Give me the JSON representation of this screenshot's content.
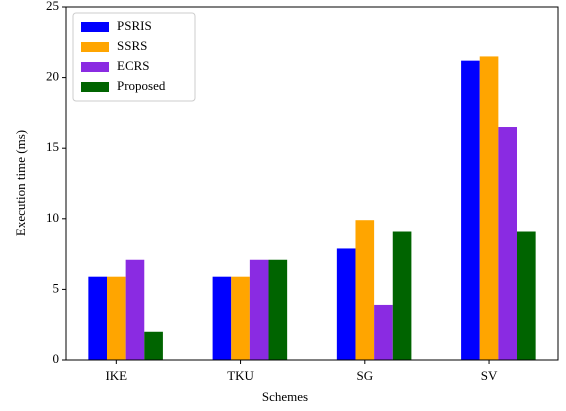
{
  "chart_data": {
    "type": "bar",
    "xlabel": "Schemes",
    "ylabel": "Execution time (ms)",
    "categories": [
      "IKE",
      "TKU",
      "SG",
      "SV"
    ],
    "series": [
      {
        "name": "PSRIS",
        "color": "#0000ff",
        "values": [
          5.9,
          5.9,
          7.9,
          21.2
        ]
      },
      {
        "name": "SSRS",
        "color": "#ffa500",
        "values": [
          5.9,
          5.9,
          9.9,
          21.5
        ]
      },
      {
        "name": "ECRS",
        "color": "#8a2be2",
        "values": [
          7.1,
          7.1,
          3.9,
          16.5
        ]
      },
      {
        "name": "Proposed",
        "color": "#006400",
        "values": [
          2.0,
          7.1,
          9.1,
          9.1
        ]
      }
    ],
    "ylim": [
      0,
      25
    ],
    "yticks": [
      0,
      5,
      10,
      15,
      20,
      25
    ],
    "grid": false,
    "legend": "upper left"
  }
}
